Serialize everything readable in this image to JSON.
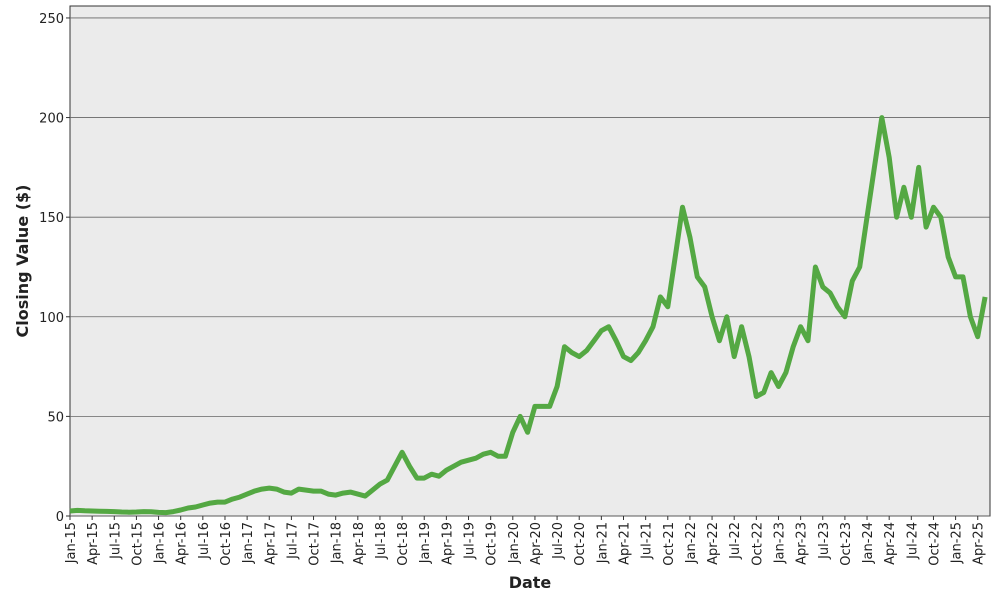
{
  "chart_data": {
    "type": "line",
    "x_label": "Date",
    "y_label": "Closing Value ($)",
    "categories": [
      "Jan-15",
      null,
      null,
      "Apr-15",
      null,
      null,
      "Jul-15",
      null,
      null,
      "Oct-15",
      null,
      null,
      "Jan-16",
      null,
      null,
      "Apr-16",
      null,
      null,
      "Jul-16",
      null,
      null,
      "Oct-16",
      null,
      null,
      "Jan-17",
      null,
      null,
      "Apr-17",
      null,
      null,
      "Jul-17",
      null,
      null,
      "Oct-17",
      null,
      null,
      "Jan-18",
      null,
      null,
      "Apr-18",
      null,
      null,
      "Jul-18",
      null,
      null,
      "Oct-18",
      null,
      null,
      "Jan-19",
      null,
      null,
      "Apr-19",
      null,
      null,
      "Jul-19",
      null,
      null,
      "Oct-19",
      null,
      null,
      "Jan-20",
      null,
      null,
      "Apr-20",
      null,
      null,
      "Jul-20",
      null,
      null,
      "Oct-20",
      null,
      null,
      "Jan-21",
      null,
      null,
      "Apr-21",
      null,
      null,
      "Jul-21",
      null,
      null,
      "Oct-21",
      null,
      null,
      "Jan-22",
      null,
      null,
      "Apr-22",
      null,
      null,
      "Jul-22",
      null,
      null,
      "Oct-22",
      null,
      null,
      "Jan-23",
      null,
      null,
      "Apr-23",
      null,
      null,
      "Jul-23",
      null,
      null,
      "Oct-23",
      null,
      null,
      "Jan-24",
      null,
      null,
      "Apr-24",
      null,
      null,
      "Jul-24",
      null,
      null,
      "Oct-24",
      null,
      null,
      "Jan-25",
      null,
      null,
      "Apr-25",
      null
    ],
    "values": [
      2.5,
      2.8,
      2.6,
      2.5,
      2.4,
      2.3,
      2.2,
      2.0,
      1.9,
      2.0,
      2.2,
      2.1,
      1.8,
      1.7,
      2.2,
      3.0,
      4.0,
      4.5,
      5.5,
      6.5,
      7.0,
      7.0,
      8.5,
      9.5,
      11,
      12.5,
      13.5,
      14,
      13.5,
      12,
      11.5,
      13.5,
      13,
      12.5,
      12.5,
      11,
      10.5,
      11.5,
      12,
      11,
      10,
      13,
      16,
      18,
      25,
      32,
      25,
      19,
      19,
      21,
      20,
      23,
      25,
      27,
      28,
      29,
      31,
      32,
      30,
      30,
      42,
      50,
      42,
      55,
      55,
      55,
      65,
      85,
      82,
      80,
      83,
      88,
      93,
      95,
      88,
      80,
      78,
      82,
      88,
      95,
      110,
      105,
      130,
      155,
      140,
      120,
      115,
      100,
      88,
      100,
      80,
      95,
      80,
      60,
      62,
      72,
      65,
      72,
      85,
      95,
      88,
      125,
      115,
      112,
      105,
      100,
      118,
      125,
      150,
      175,
      200,
      180,
      150,
      165,
      150,
      175,
      145,
      155,
      150,
      130,
      120,
      120,
      100,
      90,
      110
    ],
    "color": "#54a843",
    "ylim": [
      0,
      256
    ],
    "yticks": [
      0,
      50,
      100,
      150,
      200,
      250
    ],
    "grid": true
  }
}
